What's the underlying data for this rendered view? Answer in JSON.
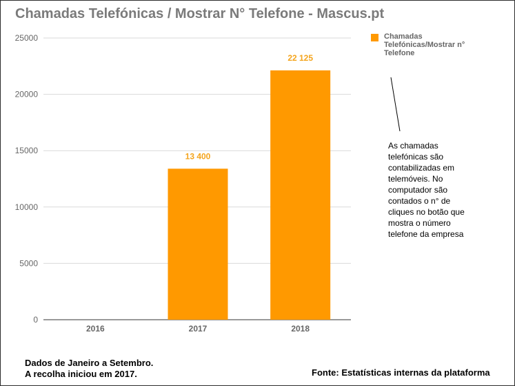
{
  "chart_data": {
    "type": "bar",
    "title": "Chamadas Telefónicas / Mostrar N° Telefone - Mascus.pt",
    "categories": [
      "2016",
      "2017",
      "2018"
    ],
    "series": [
      {
        "name": "Chamadas Telefónicas/Mostrar n° Telefone",
        "values": [
          0,
          13400,
          22125
        ],
        "labels": [
          "",
          "13 400",
          "22 125"
        ],
        "color": "#ff9900"
      }
    ],
    "y_ticks": [
      "0",
      "5000",
      "10000",
      "15000",
      "20000",
      "25000"
    ],
    "ylim": [
      0,
      25000
    ],
    "grid": true,
    "legend_position": "top-right"
  },
  "annotation": {
    "lines": [
      "As chamadas",
      "telefónicas são",
      "contabilizadas em",
      "telemóveis. No",
      "computador são",
      "contados o n° de",
      "cliques no botão que",
      "mostra o número",
      "telefone da empresa"
    ]
  },
  "footnote": {
    "line1": "Dados de Janeiro a Setembro.",
    "line2": "A recolha iniciou em 2017."
  },
  "source": "Fonte: Estatísticas internas da plataforma",
  "colors": {
    "bar": "#ff9900",
    "title": "#7a7a7a",
    "grid": "#d9d9d9",
    "axis_text": "#666666",
    "data_label": "#f4a41c"
  }
}
